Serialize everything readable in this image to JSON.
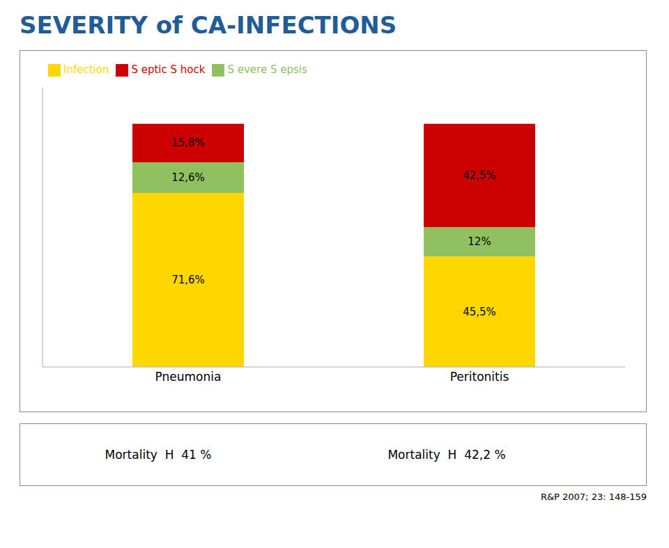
{
  "chart_data": {
    "type": "bar",
    "title": "SEVERITY of CA-INFECTIONS",
    "title_color": "#1F5C99",
    "categories": [
      "Pneumonia",
      "Peritonitis"
    ],
    "series": [
      {
        "name": "Infection",
        "color": "#FFD700",
        "values": [
          71.6,
          45.5
        ],
        "value_labels": [
          "71,6%",
          "45,5%"
        ]
      },
      {
        "name": "S evere S epsis",
        "color": "#90C060",
        "values": [
          12.6,
          12.0
        ],
        "value_labels": [
          "12,6%",
          "12%"
        ]
      },
      {
        "name": "S eptic S hock",
        "color": "#CC0000",
        "values": [
          15.8,
          42.5
        ],
        "value_labels": [
          "15,8%",
          "42,5%"
        ]
      }
    ],
    "stacked": true,
    "data_labels": true,
    "ylim": [
      0,
      115
    ],
    "tick_labels": "x",
    "grid": false,
    "legend": "top",
    "annotations": [
      "Mortality  H  41 %",
      "Mortality  H  42,2 %",
      "R&P 2007; 23: 148-159"
    ]
  }
}
